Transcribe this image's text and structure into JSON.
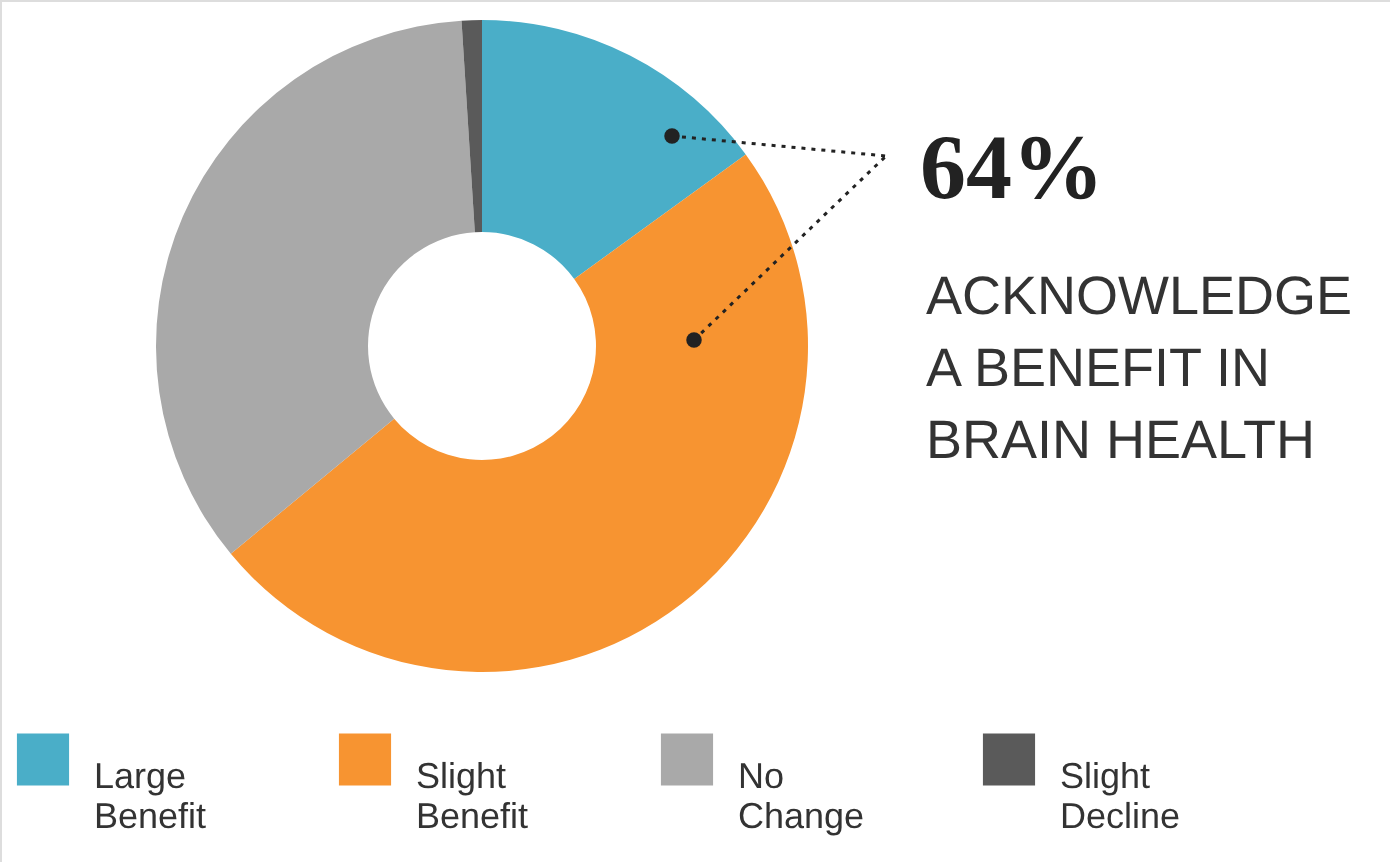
{
  "chart_data": {
    "type": "donut",
    "categories": [
      "Large Benefit",
      "Slight Benefit",
      "No Change",
      "Slight Decline"
    ],
    "values": [
      15,
      49,
      35,
      1
    ],
    "colors": [
      "#4aaec8",
      "#f79431",
      "#a9a9a9",
      "#5a5a5a"
    ],
    "annotations": [
      "64%",
      "ACKNOWLEDGE\nA BENEFIT IN\nBRAIN HEALTH"
    ],
    "legend": "bottom"
  }
}
